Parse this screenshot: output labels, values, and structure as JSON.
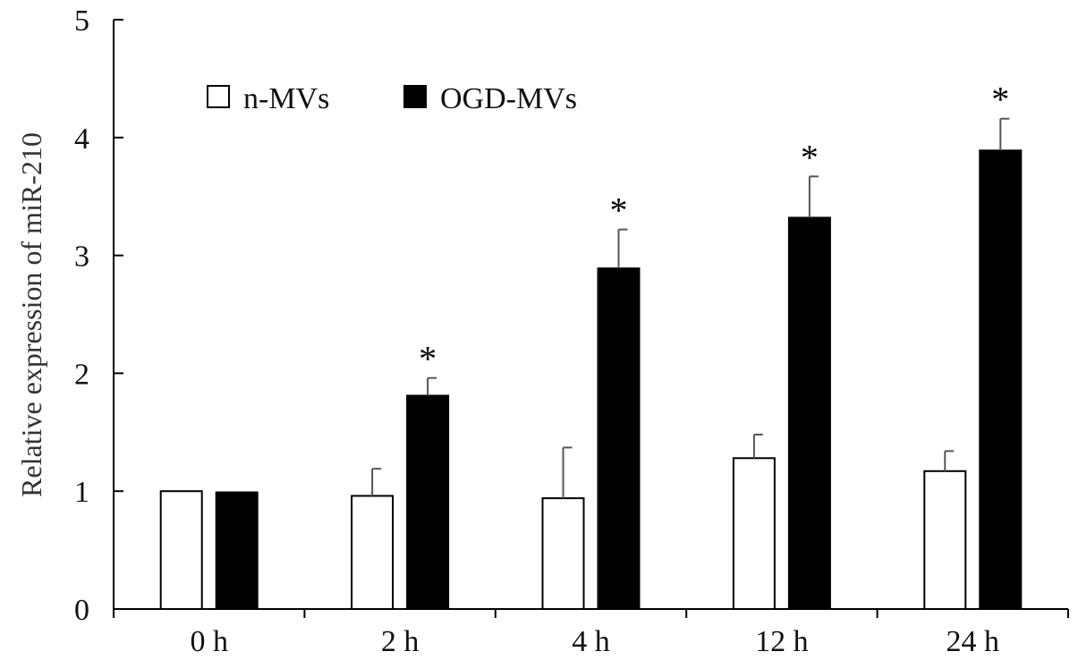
{
  "chart_data": {
    "type": "bar",
    "categories": [
      "0 h",
      "2 h",
      "4 h",
      "12 h",
      "24 h"
    ],
    "series": [
      {
        "name": "n-MVs",
        "values": [
          1.0,
          0.96,
          0.94,
          1.28,
          1.17
        ],
        "errors": [
          0.0,
          0.23,
          0.43,
          0.2,
          0.17
        ],
        "color": "#ffffff"
      },
      {
        "name": "OGD-MVs",
        "values": [
          0.99,
          1.81,
          2.89,
          3.32,
          3.89
        ],
        "errors": [
          0.0,
          0.15,
          0.33,
          0.35,
          0.27
        ],
        "color": "#000000"
      }
    ],
    "significance": [
      {
        "category": "2 h",
        "series": "OGD-MVs",
        "mark": "*"
      },
      {
        "category": "4 h",
        "series": "OGD-MVs",
        "mark": "*"
      },
      {
        "category": "12 h",
        "series": "OGD-MVs",
        "mark": "*"
      },
      {
        "category": "24 h",
        "series": "OGD-MVs",
        "mark": "*"
      }
    ],
    "ylabel": "Relative expression of miR-210",
    "xlabel": "",
    "yticks": [
      0,
      1,
      2,
      3,
      4,
      5
    ],
    "ylim": [
      0,
      5
    ],
    "grid": false,
    "legend_position": "top-left"
  }
}
